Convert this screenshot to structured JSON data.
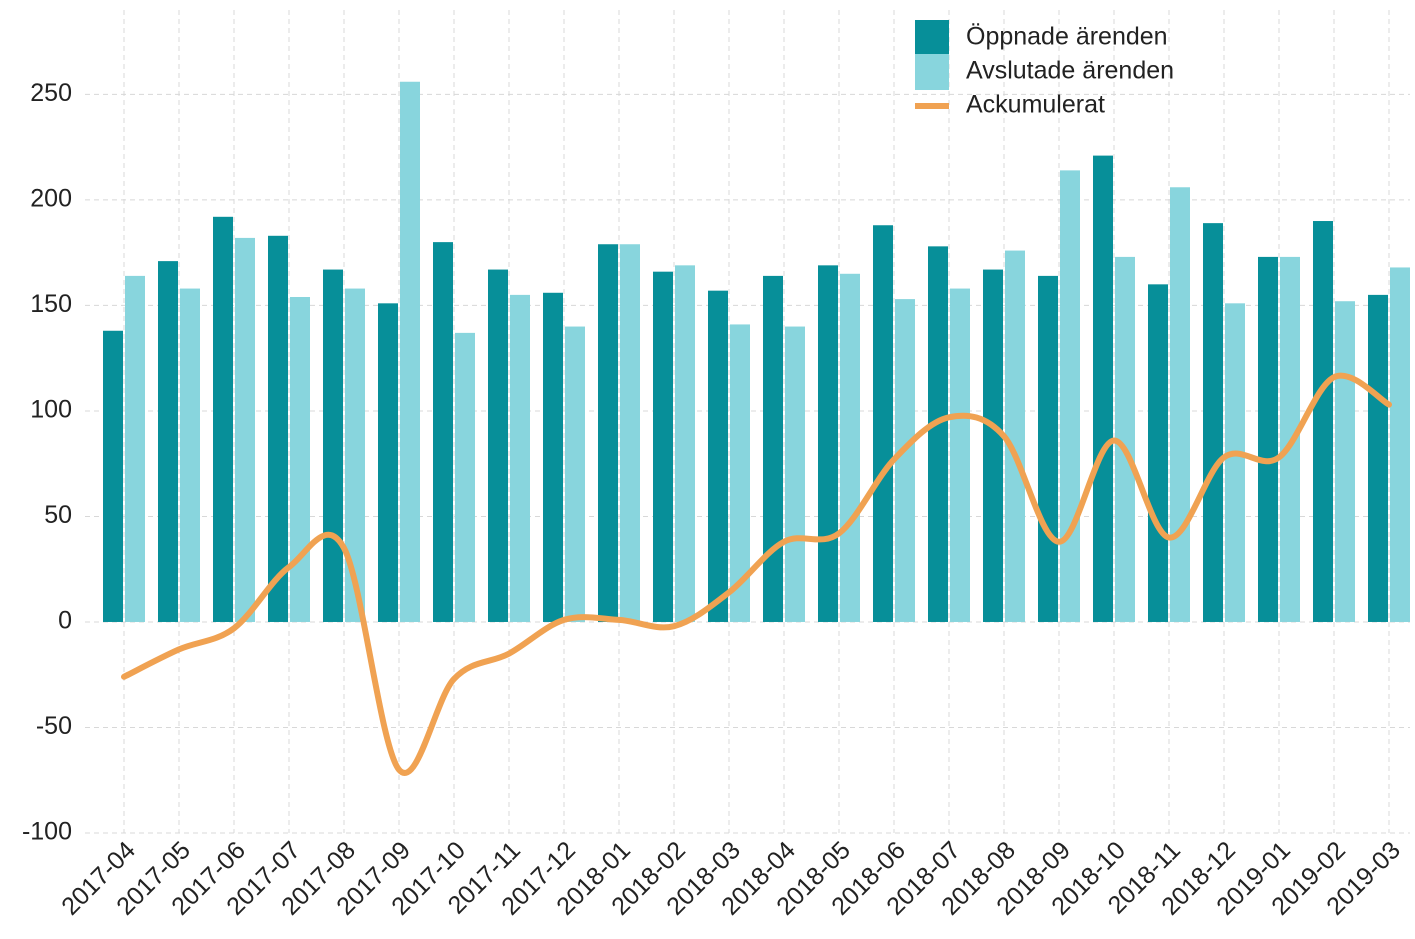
{
  "chart_data": {
    "type": "bar",
    "categories": [
      "2017-04",
      "2017-05",
      "2017-06",
      "2017-07",
      "2017-08",
      "2017-09",
      "2017-10",
      "2017-11",
      "2017-12",
      "2018-01",
      "2018-02",
      "2018-03",
      "2018-04",
      "2018-05",
      "2018-06",
      "2018-07",
      "2018-08",
      "2018-09",
      "2018-10",
      "2018-11",
      "2018-12",
      "2019-01",
      "2019-02",
      "2019-03"
    ],
    "series": [
      {
        "name": "Öppnade ärenden",
        "type": "bar",
        "color": "#078f99",
        "values": [
          138,
          171,
          192,
          183,
          167,
          151,
          180,
          167,
          156,
          179,
          166,
          157,
          164,
          169,
          188,
          178,
          167,
          164,
          221,
          160,
          189,
          173,
          190,
          155
        ]
      },
      {
        "name": "Avslutade ärenden",
        "type": "bar",
        "color": "#88d5dd",
        "values": [
          164,
          158,
          182,
          154,
          158,
          256,
          137,
          155,
          140,
          179,
          169,
          141,
          140,
          165,
          153,
          158,
          176,
          214,
          173,
          206,
          151,
          173,
          152,
          168
        ]
      },
      {
        "name": "Ackumulerat",
        "type": "line",
        "color": "#f0a252",
        "values": [
          -26,
          -13,
          -3,
          26,
          35,
          -70,
          -27,
          -15,
          1,
          1,
          -2,
          14,
          38,
          42,
          77,
          97,
          88,
          38,
          86,
          40,
          78,
          78,
          116,
          103
        ]
      }
    ],
    "ylim": [
      -100,
      290
    ],
    "yticks": [
      -100,
      -50,
      0,
      50,
      100,
      150,
      200,
      250
    ],
    "grid": true,
    "legend": "upper right"
  }
}
